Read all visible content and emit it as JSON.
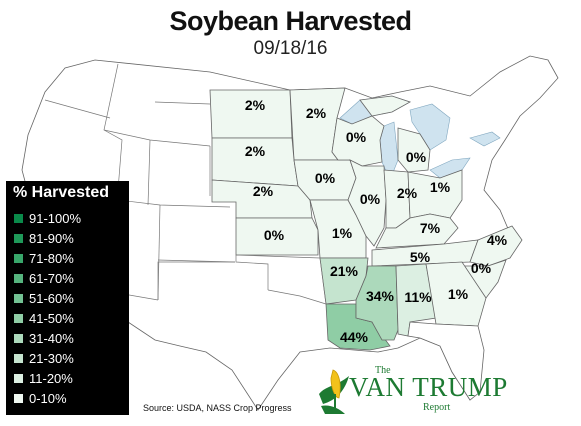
{
  "title": "Soybean Harvested",
  "date": "09/18/16",
  "legend": {
    "title": "% Harvested",
    "items": [
      {
        "label": "91-100%",
        "color": "#0a8a4a"
      },
      {
        "label": "81-90%",
        "color": "#1f9959"
      },
      {
        "label": "71-80%",
        "color": "#38a66a"
      },
      {
        "label": "61-70%",
        "color": "#56b47e"
      },
      {
        "label": "51-60%",
        "color": "#73c293"
      },
      {
        "label": "41-50%",
        "color": "#8fcda5"
      },
      {
        "label": "31-40%",
        "color": "#acd9bb"
      },
      {
        "label": "21-30%",
        "color": "#c5e4cf"
      },
      {
        "label": "11-20%",
        "color": "#dcefe2"
      },
      {
        "label": "0-10%",
        "color": "#eff8f1"
      }
    ]
  },
  "states": [
    {
      "name": "North Dakota",
      "label": "2%",
      "value": 2
    },
    {
      "name": "Minnesota",
      "label": "2%",
      "value": 2
    },
    {
      "name": "South Dakota",
      "label": "2%",
      "value": 2
    },
    {
      "name": "Wisconsin",
      "label": "0%",
      "value": 0
    },
    {
      "name": "Michigan",
      "label": "0%",
      "value": 0
    },
    {
      "name": "Iowa",
      "label": "0%",
      "value": 0
    },
    {
      "name": "Nebraska",
      "label": "2%",
      "value": 2
    },
    {
      "name": "Illinois",
      "label": "0%",
      "value": 0
    },
    {
      "name": "Indiana",
      "label": "2%",
      "value": 2
    },
    {
      "name": "Ohio",
      "label": "1%",
      "value": 1
    },
    {
      "name": "Kansas",
      "label": "0%",
      "value": 0
    },
    {
      "name": "Missouri",
      "label": "1%",
      "value": 1
    },
    {
      "name": "Kentucky",
      "label": "7%",
      "value": 7
    },
    {
      "name": "North Carolina",
      "label": "4%",
      "value": 4
    },
    {
      "name": "Tennessee",
      "label": "5%",
      "value": 5
    },
    {
      "name": "South Carolina",
      "label": "0%",
      "value": 0
    },
    {
      "name": "Arkansas",
      "label": "21%",
      "value": 21
    },
    {
      "name": "Mississippi",
      "label": "34%",
      "value": 34
    },
    {
      "name": "Alabama",
      "label": "11%",
      "value": 11
    },
    {
      "name": "Georgia",
      "label": "1%",
      "value": 1
    },
    {
      "name": "Louisiana",
      "label": "44%",
      "value": 44
    }
  ],
  "source": "Source: USDA, NASS Crop Progress",
  "logo": {
    "the": "The",
    "name": "VAN TRUMP",
    "report": "Report"
  },
  "colors": {
    "border": "#666666",
    "water": "#cfe3ef",
    "non_reporting": "#ffffff"
  }
}
